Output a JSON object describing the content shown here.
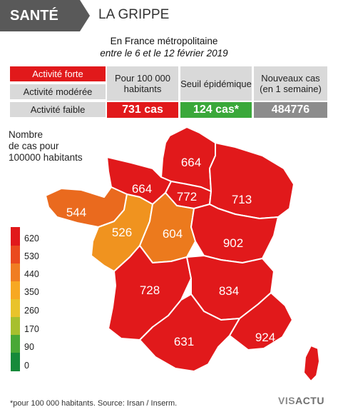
{
  "header": {
    "section": "SANTÉ",
    "topic": "LA GRIPPE"
  },
  "subtitle": {
    "line1": "En France métropolitaine",
    "line2": "entre le 6 et le 12 février 2019"
  },
  "activity_legend": {
    "forte": "Activité forte",
    "moderee": "Activité modérée",
    "faible": "Activité faible"
  },
  "stats": [
    {
      "label": "Pour 100 000 habitants",
      "value": "731 cas",
      "color": "#e1191b"
    },
    {
      "label": "Seuil épidémique",
      "value": "124 cas*",
      "color": "#3aa83a"
    },
    {
      "label": "Nouveaux cas (en 1 semaine)",
      "value": "484776",
      "color": "#8c8c8c"
    }
  ],
  "scale": {
    "title_lines": [
      "Nombre",
      "de cas pour",
      "100000 habitants"
    ],
    "labels": [
      "620",
      "530",
      "440",
      "350",
      "260",
      "170",
      "90",
      "0"
    ],
    "colors": [
      "#e1191b",
      "#ea4a1e",
      "#f07d22",
      "#f7a823",
      "#e9c32a",
      "#a7bf2e",
      "#49a836",
      "#168a3a"
    ]
  },
  "regions": [
    {
      "name": "Hauts-de-France",
      "value": "664",
      "color": "#e1191b"
    },
    {
      "name": "Normandie",
      "value": "664",
      "color": "#e1191b"
    },
    {
      "name": "Île-de-France",
      "value": "772",
      "color": "#e1191b"
    },
    {
      "name": "Grand Est",
      "value": "713",
      "color": "#e1191b"
    },
    {
      "name": "Bretagne",
      "value": "544",
      "color": "#ea6a1e"
    },
    {
      "name": "Pays de la Loire",
      "value": "526",
      "color": "#f0931f"
    },
    {
      "name": "Centre-Val de Loire",
      "value": "604",
      "color": "#ec7a1d"
    },
    {
      "name": "Bourgogne-Franche-Comté",
      "value": "902",
      "color": "#e1191b"
    },
    {
      "name": "Nouvelle-Aquitaine",
      "value": "728",
      "color": "#e1191b"
    },
    {
      "name": "Auvergne-Rhône-Alpes",
      "value": "834",
      "color": "#e1191b"
    },
    {
      "name": "Occitanie",
      "value": "631",
      "color": "#e1191b"
    },
    {
      "name": "Provence-Alpes-Côte d'Azur",
      "value": "924",
      "color": "#e1191b"
    },
    {
      "name": "Corse",
      "value": "",
      "color": "#e1191b"
    }
  ],
  "footer": {
    "note": "*pour 100 000 habitants. Source: Irsan / Inserm.",
    "logo_vis": "VIS",
    "logo_actu": "ACTU"
  }
}
